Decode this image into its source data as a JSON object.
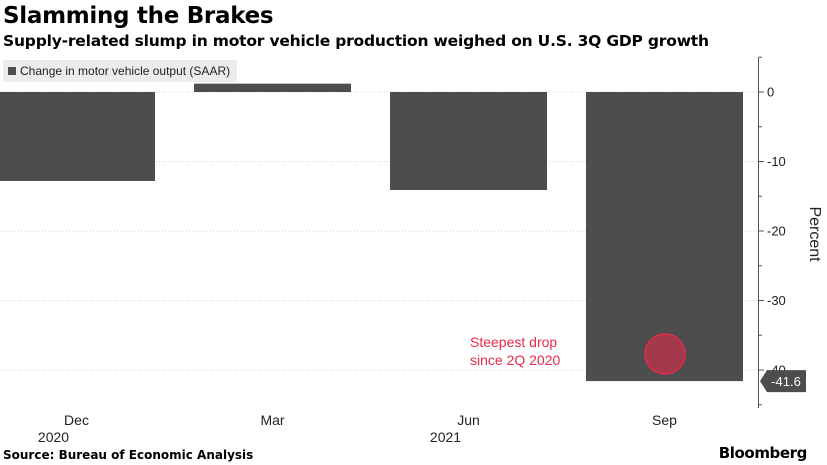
{
  "title": "Slamming the Brakes",
  "subtitle": "Supply-related slump in motor vehicle production weighed on U.S. 3Q GDP growth",
  "legend": {
    "label": "Change in motor vehicle output (SAAR)"
  },
  "annotation": {
    "line1": "Steepest drop",
    "line2": "since 2Q 2020"
  },
  "source": "Source: Bureau of Economic Analysis",
  "brand": "Bloomberg",
  "colors": {
    "bar": "#4d4d4d",
    "annotation": "#e8294a",
    "value_label_bg": "#4d4d4d"
  },
  "chart_data": {
    "type": "bar",
    "categories": [
      "Dec",
      "Mar",
      "Jun",
      "Sep"
    ],
    "year_labels": [
      "2020",
      "",
      "2021",
      ""
    ],
    "values": [
      -12.8,
      1.2,
      -14.1,
      -41.6
    ],
    "ylabel": "Percent",
    "ylim": [
      -45,
      5
    ],
    "yticks": [
      0,
      -10,
      -20,
      -30,
      -40
    ],
    "ytick_labels": [
      "0",
      "-10",
      "-20",
      "-30",
      "-40"
    ],
    "value_label": "-41.6",
    "value_label_index": 3,
    "grid": true,
    "y_axis_side": "right",
    "legend_position": "top-left"
  }
}
